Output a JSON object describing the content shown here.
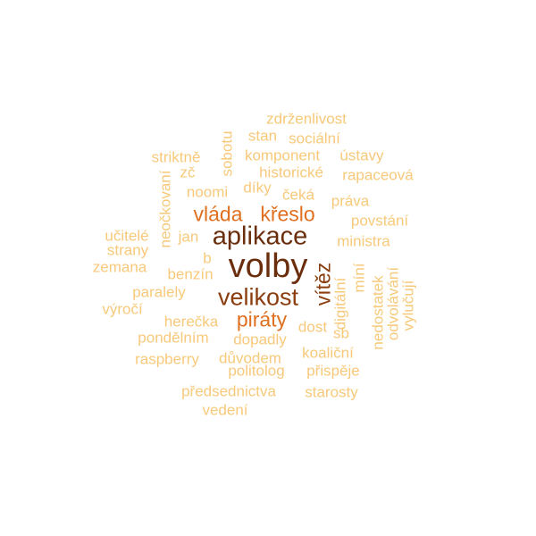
{
  "palette": {
    "c1": "#6b2e0c",
    "c2": "#8a3d0e",
    "c3": "#e07020",
    "c4": "#f0b050",
    "c5": "#f7c97a"
  },
  "words": [
    {
      "text": "volby",
      "size": 38,
      "color": "c1",
      "rotated": false
    },
    {
      "text": "aplikace",
      "size": 29,
      "color": "c1",
      "rotated": false
    },
    {
      "text": "velikost",
      "size": 27,
      "color": "c2",
      "rotated": false
    },
    {
      "text": "vítěz",
      "size": 23,
      "color": "c2",
      "rotated": true
    },
    {
      "text": "vláda",
      "size": 23,
      "color": "c3",
      "rotated": false
    },
    {
      "text": "křeslo",
      "size": 23,
      "color": "c3",
      "rotated": false
    },
    {
      "text": "piráty",
      "size": 23,
      "color": "c3",
      "rotated": false
    },
    {
      "text": "zdrženlivost",
      "size": 17,
      "color": "c5",
      "rotated": false
    },
    {
      "text": "stan",
      "size": 17,
      "color": "c5",
      "rotated": false
    },
    {
      "text": "sociální",
      "size": 17,
      "color": "c5",
      "rotated": false
    },
    {
      "text": "sobotu",
      "size": 17,
      "color": "c5",
      "rotated": true
    },
    {
      "text": "striktně",
      "size": 17,
      "color": "c5",
      "rotated": false
    },
    {
      "text": "komponent",
      "size": 17,
      "color": "c5",
      "rotated": false
    },
    {
      "text": "ústavy",
      "size": 17,
      "color": "c5",
      "rotated": false
    },
    {
      "text": "zč",
      "size": 17,
      "color": "c5",
      "rotated": false
    },
    {
      "text": "historické",
      "size": 17,
      "color": "c5",
      "rotated": false
    },
    {
      "text": "rapaceová",
      "size": 17,
      "color": "c5",
      "rotated": false
    },
    {
      "text": "neočkovaní",
      "size": 17,
      "color": "c5",
      "rotated": true
    },
    {
      "text": "noomi",
      "size": 17,
      "color": "c5",
      "rotated": false
    },
    {
      "text": "díky",
      "size": 17,
      "color": "c5",
      "rotated": false
    },
    {
      "text": "čeká",
      "size": 17,
      "color": "c5",
      "rotated": false
    },
    {
      "text": "práva",
      "size": 17,
      "color": "c5",
      "rotated": false
    },
    {
      "text": "povstání",
      "size": 17,
      "color": "c5",
      "rotated": false
    },
    {
      "text": "učitelé",
      "size": 17,
      "color": "c5",
      "rotated": false
    },
    {
      "text": "jan",
      "size": 17,
      "color": "c5",
      "rotated": false
    },
    {
      "text": "ministra",
      "size": 17,
      "color": "c5",
      "rotated": false
    },
    {
      "text": "strany",
      "size": 17,
      "color": "c5",
      "rotated": false
    },
    {
      "text": "b",
      "size": 17,
      "color": "c5",
      "rotated": false
    },
    {
      "text": "zemana",
      "size": 17,
      "color": "c5",
      "rotated": false
    },
    {
      "text": "benzín",
      "size": 17,
      "color": "c5",
      "rotated": false
    },
    {
      "text": "digitální",
      "size": 17,
      "color": "c5",
      "rotated": true
    },
    {
      "text": "míní",
      "size": 17,
      "color": "c5",
      "rotated": true
    },
    {
      "text": "nedostatek",
      "size": 17,
      "color": "c5",
      "rotated": true
    },
    {
      "text": "odvolávání",
      "size": 17,
      "color": "c5",
      "rotated": true
    },
    {
      "text": "vylučují",
      "size": 17,
      "color": "c5",
      "rotated": true
    },
    {
      "text": "paralely",
      "size": 17,
      "color": "c5",
      "rotated": false
    },
    {
      "text": "výročí",
      "size": 17,
      "color": "c5",
      "rotated": false
    },
    {
      "text": "herečka",
      "size": 17,
      "color": "c5",
      "rotated": false
    },
    {
      "text": "dost",
      "size": 17,
      "color": "c5",
      "rotated": false
    },
    {
      "text": "pondělním",
      "size": 17,
      "color": "c5",
      "rotated": false
    },
    {
      "text": "dopadly",
      "size": 17,
      "color": "c5",
      "rotated": false
    },
    {
      "text": "sb",
      "size": 17,
      "color": "c5",
      "rotated": false
    },
    {
      "text": "koaliční",
      "size": 17,
      "color": "c5",
      "rotated": false
    },
    {
      "text": "raspberry",
      "size": 17,
      "color": "c5",
      "rotated": false
    },
    {
      "text": "důvodem",
      "size": 17,
      "color": "c5",
      "rotated": false
    },
    {
      "text": "politolog",
      "size": 17,
      "color": "c5",
      "rotated": false
    },
    {
      "text": "přispěje",
      "size": 17,
      "color": "c5",
      "rotated": false
    },
    {
      "text": "předsednictva",
      "size": 17,
      "color": "c5",
      "rotated": false
    },
    {
      "text": "starosty",
      "size": 17,
      "color": "c5",
      "rotated": false
    },
    {
      "text": "vedení",
      "size": 17,
      "color": "c5",
      "rotated": false
    }
  ]
}
